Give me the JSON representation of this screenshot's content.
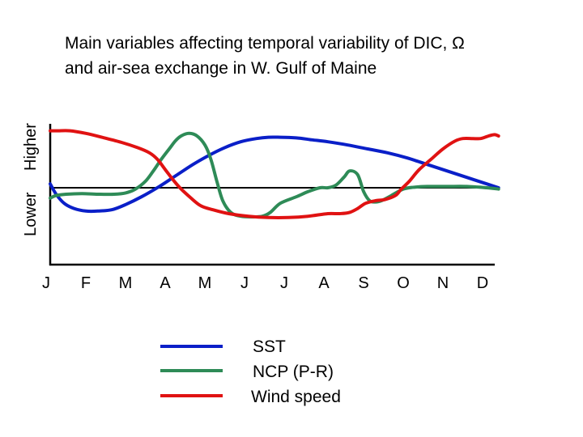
{
  "chart_data": {
    "type": "line",
    "title_lines": [
      "Main variables affecting temporal variability of DIC, Ω",
      "and air-sea exchange in W. Gulf of Maine"
    ],
    "ylabel_low": "Lower",
    "ylabel_high": "Higher",
    "categories": [
      "J",
      "F",
      "M",
      "A",
      "M",
      "J",
      "J",
      "A",
      "S",
      "O",
      "N",
      "D"
    ],
    "ylim": [
      0,
      1
    ],
    "reference_level": 0.5,
    "grid": false,
    "legend_position": "bottom-center",
    "series": [
      {
        "name": "SST",
        "color": "#0a1fc8",
        "x": [
          0.0,
          0.15,
          0.35,
          0.6,
          0.9,
          1.2,
          1.55,
          1.9,
          2.3,
          2.75,
          3.2,
          3.6,
          4.0,
          4.4,
          4.8,
          5.2,
          5.5,
          5.8,
          6.2,
          6.6,
          7.0,
          7.5,
          8.0,
          8.5,
          9.0,
          9.5,
          10.0,
          10.5,
          11.0,
          11.3
        ],
        "values": [
          0.53,
          0.45,
          0.38,
          0.34,
          0.32,
          0.32,
          0.33,
          0.37,
          0.43,
          0.51,
          0.6,
          0.68,
          0.75,
          0.81,
          0.855,
          0.88,
          0.89,
          0.89,
          0.885,
          0.87,
          0.855,
          0.83,
          0.8,
          0.77,
          0.73,
          0.68,
          0.63,
          0.58,
          0.53,
          0.5
        ]
      },
      {
        "name": "NCP (P-R)",
        "color": "#2e8b57",
        "x": [
          0.0,
          0.15,
          0.4,
          0.8,
          1.2,
          1.6,
          1.9,
          2.15,
          2.4,
          2.6,
          2.8,
          3.0,
          3.15,
          3.3,
          3.5,
          3.7,
          3.9,
          4.05,
          4.2,
          4.35,
          4.55,
          4.8,
          5.1,
          5.35,
          5.55,
          5.8,
          6.2,
          6.5,
          6.8,
          7.0,
          7.2,
          7.4,
          7.55,
          7.75,
          7.9,
          8.05,
          8.2,
          8.35,
          8.6,
          8.9,
          9.2,
          9.5,
          10.0,
          10.5,
          11.0,
          11.3
        ],
        "values": [
          0.42,
          0.44,
          0.45,
          0.455,
          0.45,
          0.45,
          0.46,
          0.49,
          0.55,
          0.63,
          0.72,
          0.8,
          0.86,
          0.9,
          0.92,
          0.9,
          0.83,
          0.72,
          0.55,
          0.4,
          0.31,
          0.28,
          0.275,
          0.28,
          0.31,
          0.38,
          0.43,
          0.47,
          0.5,
          0.5,
          0.52,
          0.58,
          0.63,
          0.6,
          0.47,
          0.4,
          0.39,
          0.4,
          0.44,
          0.49,
          0.505,
          0.51,
          0.51,
          0.51,
          0.5,
          0.49
        ]
      },
      {
        "name": "Wind speed",
        "color": "#e01212",
        "x": [
          0.0,
          0.2,
          0.5,
          0.9,
          1.3,
          1.8,
          2.2,
          2.5,
          2.7,
          2.9,
          3.1,
          3.3,
          3.55,
          3.8,
          4.1,
          4.5,
          5.0,
          5.5,
          6.0,
          6.5,
          7.0,
          7.3,
          7.55,
          7.75,
          7.95,
          8.2,
          8.45,
          8.7,
          8.85,
          9.05,
          9.3,
          9.6,
          9.9,
          10.2,
          10.4,
          10.65,
          10.85,
          11.05,
          11.2,
          11.3
        ],
        "values": [
          0.94,
          0.94,
          0.94,
          0.92,
          0.89,
          0.85,
          0.81,
          0.77,
          0.72,
          0.64,
          0.56,
          0.49,
          0.42,
          0.36,
          0.33,
          0.3,
          0.28,
          0.27,
          0.27,
          0.28,
          0.3,
          0.3,
          0.31,
          0.34,
          0.38,
          0.4,
          0.41,
          0.44,
          0.49,
          0.55,
          0.64,
          0.72,
          0.8,
          0.86,
          0.88,
          0.88,
          0.88,
          0.9,
          0.91,
          0.9
        ]
      }
    ]
  }
}
